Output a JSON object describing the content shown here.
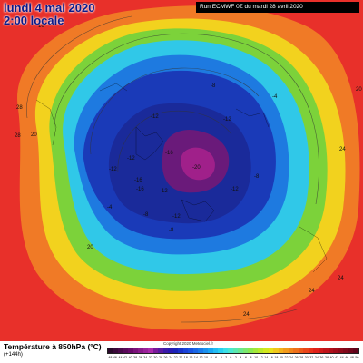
{
  "header": {
    "date_line": "lundi 4 mai 2020",
    "time_line": "2:00 locale",
    "run_info": "Run ECMWF 0Z du mardi 28 avril 2020"
  },
  "map": {
    "type": "polar stereographic temperature map",
    "field": "temperature at 850 hPa",
    "contour_labels": [
      "-20",
      "-16",
      "-16",
      "-16",
      "-12",
      "-12",
      "-12",
      "-12",
      "-12",
      "-12",
      "-12",
      "-8",
      "-8",
      "-8",
      "-8",
      "-4",
      "-4",
      "16",
      "20",
      "24",
      "24",
      "24",
      "28",
      "28",
      "20",
      "20",
      "24"
    ],
    "colors": {
      "warm_edge": "#e8302a",
      "orange": "#f07a26",
      "yellow": "#f2d21e",
      "green": "#7cd23a",
      "cyan": "#30c8e8",
      "blue": "#1e5cd6",
      "navy": "#1a2a9a",
      "purple": "#6a1a7a",
      "magenta": "#a0208a"
    }
  },
  "footer": {
    "title": "Température à 850hPa (°C)",
    "subtitle": "(+144h)",
    "copyright": "Copyright 2020 Meteociel.fr",
    "scale_labels": [
      "-48",
      "-46",
      "-44",
      "-42",
      "-40",
      "-38",
      "-36",
      "-34",
      "-32",
      "-30",
      "-28",
      "-26",
      "-24",
      "-22",
      "-20",
      "-18",
      "-16",
      "-14",
      "-12",
      "-10",
      "-8",
      "-6",
      "-4",
      "-2",
      "0",
      "2",
      "4",
      "6",
      "8",
      "10",
      "12",
      "14",
      "16",
      "18",
      "20",
      "22",
      "24",
      "26",
      "28",
      "30",
      "32",
      "34",
      "36",
      "38",
      "40",
      "42",
      "44",
      "46",
      "48",
      "50"
    ],
    "scale_colors": [
      "#2a0a2a",
      "#3a0a3a",
      "#4a0a4a",
      "#5a0a5a",
      "#6a0a6a",
      "#7a127a",
      "#8a1a8a",
      "#9a229a",
      "#aa2aaa",
      "#7a1a9a",
      "#5a1aa0",
      "#3a1aa8",
      "#2a1ab0",
      "#1a22b8",
      "#1a32c8",
      "#1a42d8",
      "#1a52e0",
      "#1a66e6",
      "#1a7aea",
      "#1a90ee",
      "#1aa6f2",
      "#22bcf4",
      "#2ad0f0",
      "#3ae0e8",
      "#4ae8d0",
      "#5ae8b0",
      "#6ae890",
      "#7ae870",
      "#8ae850",
      "#a2e83a",
      "#bae82a",
      "#d2e81e",
      "#e8e01a",
      "#f0c81a",
      "#f2b01a",
      "#f29a1a",
      "#f0841a",
      "#ee701a",
      "#ec5a1a",
      "#ea461a",
      "#e8321a",
      "#e0221a",
      "#d01a1a",
      "#c0141a",
      "#b0101a",
      "#a00c1a",
      "#900a1a",
      "#80081a",
      "#70061a",
      "#60041a"
    ]
  }
}
